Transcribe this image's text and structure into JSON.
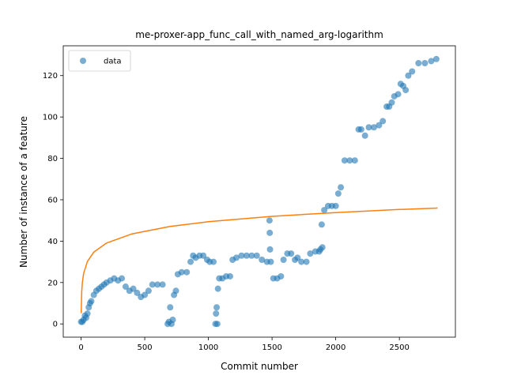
{
  "chart_data": {
    "type": "scatter",
    "title": "me-proxer-app_func_call_with_named_arg-logarithm",
    "xlabel": "Commit number",
    "ylabel": "Number of instance of a feature",
    "xlim": [
      -140,
      2940
    ],
    "ylim": [
      -6.4,
      134.4
    ],
    "xticks": [
      0,
      500,
      1000,
      1500,
      2000,
      2500
    ],
    "yticks": [
      0,
      20,
      40,
      60,
      80,
      100,
      120
    ],
    "legend": "upper left",
    "series": [
      {
        "name": "data",
        "type": "scatter",
        "color": "#1f77b4",
        "x": [
          0,
          10,
          20,
          30,
          40,
          50,
          60,
          70,
          80,
          100,
          120,
          140,
          160,
          180,
          200,
          230,
          260,
          290,
          320,
          350,
          380,
          410,
          440,
          470,
          500,
          530,
          560,
          600,
          640,
          680,
          690,
          700,
          710,
          720,
          730,
          745,
          760,
          790,
          830,
          860,
          880,
          900,
          930,
          960,
          990,
          1010,
          1040,
          1055,
          1060,
          1065,
          1070,
          1075,
          1085,
          1110,
          1140,
          1170,
          1190,
          1220,
          1260,
          1300,
          1340,
          1380,
          1420,
          1460,
          1480,
          1482,
          1484,
          1490,
          1510,
          1540,
          1570,
          1590,
          1620,
          1650,
          1680,
          1700,
          1730,
          1770,
          1800,
          1840,
          1870,
          1880,
          1890,
          1895,
          1910,
          1940,
          1970,
          2000,
          2020,
          2040,
          2070,
          2110,
          2150,
          2180,
          2200,
          2230,
          2260,
          2300,
          2340,
          2370,
          2400,
          2420,
          2440,
          2460,
          2490,
          2510,
          2530,
          2550,
          2570,
          2600,
          2650,
          2700,
          2750,
          2790
        ],
        "values": [
          1,
          1,
          2,
          4,
          3,
          5,
          8,
          10,
          11,
          14,
          16,
          17,
          18,
          19,
          20,
          21,
          22,
          21,
          22,
          18,
          16,
          17,
          15,
          13,
          14,
          16,
          19,
          19,
          19,
          0,
          1,
          8,
          0,
          2,
          14,
          16,
          24,
          25,
          25,
          30,
          33,
          32,
          33,
          33,
          31,
          30,
          30,
          0,
          5,
          8,
          0,
          17,
          22,
          22,
          23,
          23,
          31,
          32,
          33,
          33,
          33,
          33,
          31,
          30,
          50,
          44,
          36,
          30,
          22,
          22,
          23,
          31,
          34,
          34,
          31,
          32,
          30,
          30,
          34,
          35,
          35,
          36,
          48,
          37,
          55,
          57,
          57,
          57,
          63,
          66,
          79,
          79,
          79,
          94,
          94,
          91,
          95,
          95,
          96,
          98,
          105,
          105,
          107,
          110,
          111,
          116,
          115,
          113,
          120,
          122,
          126,
          126,
          127,
          128
        ]
      },
      {
        "type": "line",
        "color": "#ff7f0e",
        "x": [
          1,
          5,
          10,
          20,
          50,
          100,
          200,
          400,
          700,
          1000,
          1500,
          2000,
          2500,
          2800
        ],
        "values": [
          5.2,
          15.5,
          19.9,
          24.4,
          30.2,
          34.7,
          39.1,
          43.5,
          47.1,
          49.4,
          52.0,
          53.8,
          55.3,
          56.0
        ]
      }
    ]
  }
}
